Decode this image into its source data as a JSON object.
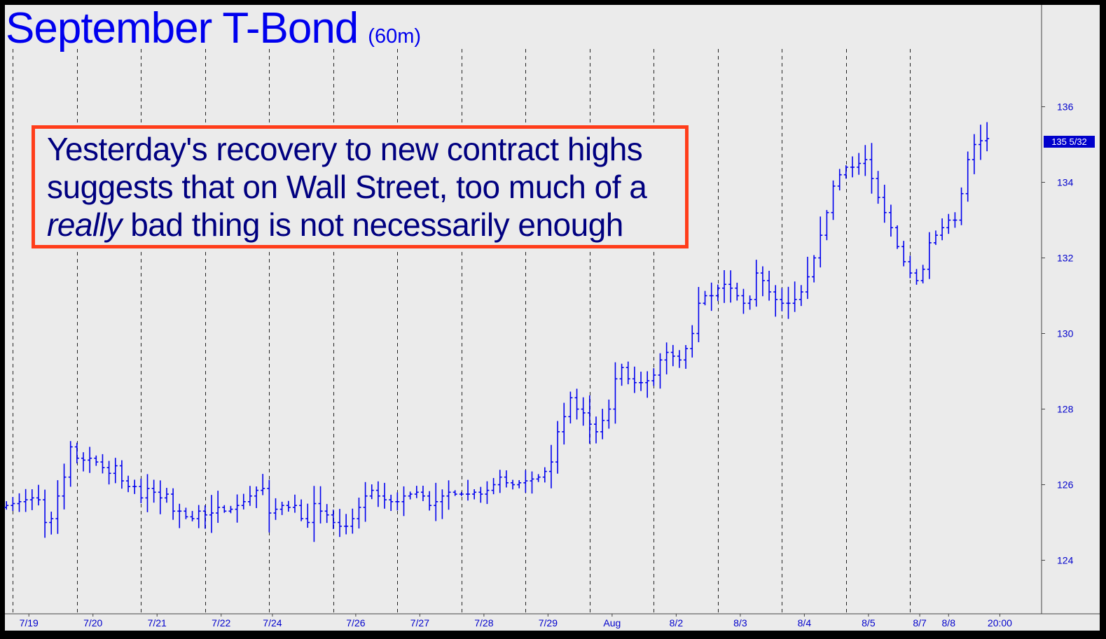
{
  "chart_data": {
    "type": "ohlc",
    "title": "September T-Bond",
    "subtitle": "(60m)",
    "annotation": {
      "line1": "Yesterday's recovery to new contract highs",
      "line2": "suggests that on Wall Street, too much of a",
      "line3_emph": "really",
      "line3_rest": " bad thing is not necessarily enough"
    },
    "last_price_label": "135 5/32",
    "y_axis": {
      "ticks": [
        "124",
        "126",
        "128",
        "130",
        "132",
        "134",
        "136"
      ],
      "tick_values": [
        124,
        126,
        128,
        130,
        132,
        134,
        136
      ],
      "range": [
        122.6,
        138.6
      ]
    },
    "x_axis": {
      "labels": [
        "7/19",
        "7/20",
        "7/21",
        "7/22",
        "7/24",
        "7/26",
        "7/27",
        "7/28",
        "7/29",
        "Aug",
        "8/2",
        "8/3",
        "8/4",
        "8/5",
        "8/7",
        "8/8",
        "20:00"
      ],
      "label_bar_index": [
        3.5,
        13.5,
        23.5,
        33.5,
        41.5,
        54.5,
        64.5,
        74.5,
        84.5,
        94.5,
        104.5,
        114.5,
        124.5,
        134.5,
        142.5,
        147,
        155
      ]
    },
    "session_separator_bar_index": [
      1,
      11,
      21,
      31,
      41,
      51,
      61,
      71,
      81,
      91,
      101,
      111,
      121,
      131,
      141
    ],
    "bars_per_session": 10,
    "closes": [
      125.45,
      125.5,
      125.55,
      125.6,
      125.65,
      125.6,
      125.0,
      125.1,
      125.7,
      126.2,
      127.0,
      126.7,
      126.65,
      126.7,
      126.6,
      126.45,
      126.3,
      126.5,
      126.1,
      125.95,
      125.95,
      125.65,
      125.9,
      125.8,
      125.65,
      125.75,
      125.3,
      125.3,
      125.15,
      125.1,
      125.3,
      125.2,
      125.25,
      125.4,
      125.3,
      125.35,
      125.45,
      125.55,
      125.7,
      125.85,
      125.9,
      125.25,
      125.35,
      125.45,
      125.4,
      125.45,
      125.1,
      125.0,
      125.5,
      125.3,
      125.2,
      125.0,
      124.9,
      124.9,
      125.1,
      125.4,
      125.7,
      125.85,
      125.7,
      125.6,
      125.55,
      125.55,
      125.7,
      125.75,
      125.8,
      125.7,
      125.45,
      125.55,
      125.7,
      125.8,
      125.75,
      125.75,
      125.75,
      125.8,
      125.75,
      125.85,
      126.0,
      126.2,
      126.05,
      126.0,
      126.05,
      126.1,
      126.15,
      126.2,
      126.35,
      126.6,
      127.4,
      127.8,
      128.3,
      128.0,
      127.9,
      127.6,
      127.4,
      127.7,
      128.0,
      128.8,
      129.1,
      128.8,
      128.7,
      128.7,
      128.75,
      128.9,
      129.3,
      129.5,
      129.4,
      129.3,
      129.6,
      130.0,
      130.8,
      131.0,
      131.0,
      131.2,
      131.3,
      131.2,
      131.0,
      130.8,
      130.9,
      131.6,
      131.4,
      131.1,
      130.9,
      130.8,
      130.8,
      130.9,
      131.1,
      131.5,
      132.0,
      132.6,
      133.2,
      133.9,
      134.2,
      134.4,
      134.4,
      134.5,
      134.6,
      134.1,
      133.6,
      133.2,
      132.8,
      132.3,
      131.9,
      131.6,
      131.4,
      131.7,
      132.4,
      132.6,
      132.8,
      133.0,
      133.0,
      133.7,
      134.6,
      135.0,
      135.1,
      135.156
    ]
  }
}
